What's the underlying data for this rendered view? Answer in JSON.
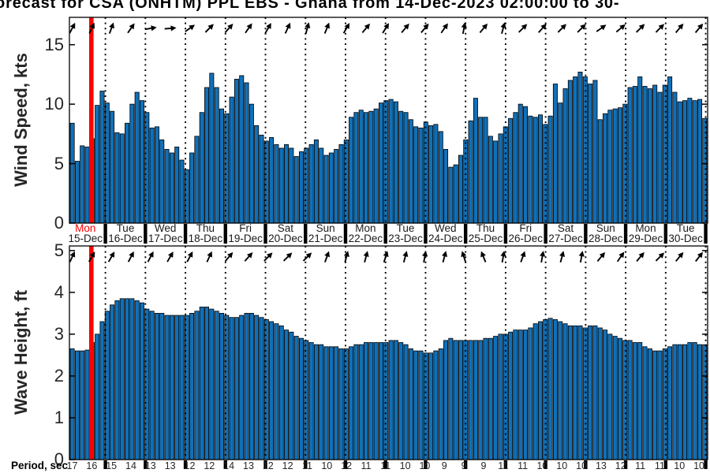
{
  "title": "orecast for CSA (ONHTM) PPL EBS  - Ghana from 14-Dec-2023 02:00:00 to 30-",
  "colors": {
    "bar_fill": "#1070B8",
    "bar_edge": "#000000",
    "now_line": "#FF0000",
    "axis_text": "#262626",
    "highlight_day": "#FF0000"
  },
  "now_marker": {
    "label": "Mon",
    "color": "#FF0000"
  },
  "x_axis": {
    "day_labels": [
      {
        "day": "Mon",
        "date": "15-Dec",
        "highlight": true
      },
      {
        "day": "Tue",
        "date": "16-Dec",
        "highlight": false
      },
      {
        "day": "Wed",
        "date": "17-Dec",
        "highlight": false
      },
      {
        "day": "Thu",
        "date": "18-Dec",
        "highlight": false
      },
      {
        "day": "Fri",
        "date": "19-Dec",
        "highlight": false
      },
      {
        "day": "Sat",
        "date": "20-Dec",
        "highlight": false
      },
      {
        "day": "Sun",
        "date": "21-Dec",
        "highlight": false
      },
      {
        "day": "Mon",
        "date": "22-Dec",
        "highlight": false
      },
      {
        "day": "Tue",
        "date": "23-Dec",
        "highlight": false
      },
      {
        "day": "Wed",
        "date": "24-Dec",
        "highlight": false
      },
      {
        "day": "Thu",
        "date": "25-Dec",
        "highlight": false
      },
      {
        "day": "Fri",
        "date": "26-Dec",
        "highlight": false
      },
      {
        "day": "Sat",
        "date": "27-Dec",
        "highlight": false
      },
      {
        "day": "Sun",
        "date": "28-Dec",
        "highlight": false
      },
      {
        "day": "Mon",
        "date": "29-Dec",
        "highlight": false
      },
      {
        "day": "Tue",
        "date": "30-Dec",
        "highlight": false
      }
    ]
  },
  "period_row": {
    "label": "Period, sec",
    "values": [
      17,
      16,
      15,
      14,
      13,
      13,
      12,
      12,
      14,
      13,
      12,
      12,
      11,
      10,
      12,
      11,
      11,
      10,
      10,
      9,
      9,
      9,
      11,
      11,
      10,
      10,
      10,
      13,
      12,
      11,
      11,
      10,
      10
    ]
  },
  "chart_data": [
    {
      "type": "bar",
      "name": "wind_speed",
      "ylabel": "Wind Speed, kts",
      "units": "kts",
      "interval_hours": 3,
      "ylim": [
        0,
        17.3
      ],
      "yticks": [
        "0",
        "5",
        "10",
        "15"
      ],
      "ytick_values": [
        0,
        5,
        10,
        15
      ],
      "grid": "dotted vertical at day boundaries",
      "values": [
        8.4,
        5.2,
        6.5,
        6.4,
        7.1,
        9.9,
        11.1,
        10.1,
        9.4,
        7.6,
        7.5,
        8.4,
        10.0,
        11.0,
        10.3,
        9.3,
        8.0,
        8.1,
        7.0,
        6.2,
        5.9,
        6.4,
        5.3,
        4.5,
        5.9,
        7.3,
        9.3,
        11.4,
        12.6,
        11.4,
        9.6,
        9.2,
        10.6,
        12.1,
        12.4,
        11.8,
        10.0,
        8.2,
        7.4,
        6.9,
        7.2,
        6.6,
        6.3,
        6.6,
        6.3,
        5.6,
        6.0,
        6.3,
        6.6,
        7.0,
        6.3,
        5.7,
        5.9,
        6.2,
        6.6,
        7.0,
        8.9,
        9.3,
        9.5,
        9.3,
        9.4,
        9.6,
        10.1,
        10.3,
        10.4,
        10.2,
        9.4,
        9.3,
        8.7,
        8.1,
        8.0,
        8.5,
        8.2,
        8.3,
        7.7,
        6.2,
        4.7,
        4.9,
        5.7,
        7.0,
        8.6,
        10.5,
        8.9,
        8.9,
        7.3,
        6.9,
        7.5,
        8.1,
        8.8,
        9.3,
        10.0,
        9.8,
        9.0,
        8.9,
        9.1,
        8.3,
        9.0,
        11.7,
        10.1,
        11.3,
        12.0,
        12.3,
        12.7,
        12.3,
        11.7,
        12.0,
        8.7,
        9.2,
        9.5,
        9.6,
        9.7,
        10.0,
        11.4,
        11.5,
        12.3,
        11.5,
        11.3,
        11.6,
        11.0,
        11.6,
        12.3,
        11.0,
        10.2,
        10.3,
        10.5,
        10.3,
        10.4,
        8.8
      ],
      "arrow_directions_deg": [
        28,
        25,
        20,
        35,
        80,
        85,
        55,
        45,
        42,
        35,
        30,
        25,
        15,
        22,
        30,
        40,
        32,
        40,
        40,
        35,
        10,
        40,
        15,
        45,
        42,
        45,
        45,
        55,
        50,
        45,
        45,
        40,
        40
      ]
    },
    {
      "type": "bar",
      "name": "wave_height",
      "ylabel": "Wave Height, ft",
      "units": "ft",
      "interval_hours": 3,
      "ylim": [
        0,
        5.11
      ],
      "yticks": [
        "0",
        "1",
        "2",
        "3",
        "4",
        "5"
      ],
      "ytick_values": [
        0,
        1,
        2,
        3,
        4,
        5
      ],
      "grid": "dotted vertical at day boundaries",
      "values": [
        2.65,
        2.6,
        2.6,
        2.62,
        2.8,
        3.0,
        3.3,
        3.55,
        3.7,
        3.8,
        3.85,
        3.85,
        3.85,
        3.8,
        3.75,
        3.6,
        3.55,
        3.5,
        3.5,
        3.45,
        3.45,
        3.45,
        3.45,
        3.45,
        3.5,
        3.55,
        3.65,
        3.65,
        3.6,
        3.55,
        3.5,
        3.45,
        3.4,
        3.4,
        3.45,
        3.5,
        3.5,
        3.45,
        3.4,
        3.35,
        3.3,
        3.25,
        3.2,
        3.1,
        3.05,
        2.95,
        2.9,
        2.85,
        2.8,
        2.75,
        2.75,
        2.7,
        2.7,
        2.7,
        2.65,
        2.65,
        2.7,
        2.75,
        2.75,
        2.8,
        2.8,
        2.8,
        2.8,
        2.8,
        2.85,
        2.85,
        2.8,
        2.75,
        2.65,
        2.6,
        2.6,
        2.55,
        2.55,
        2.6,
        2.65,
        2.85,
        2.9,
        2.85,
        2.85,
        2.85,
        2.85,
        2.85,
        2.85,
        2.9,
        2.9,
        2.95,
        3.0,
        3.0,
        3.05,
        3.1,
        3.1,
        3.1,
        3.15,
        3.25,
        3.3,
        3.35,
        3.38,
        3.35,
        3.3,
        3.25,
        3.2,
        3.2,
        3.2,
        3.15,
        3.2,
        3.2,
        3.15,
        3.1,
        3.0,
        2.95,
        2.9,
        2.85,
        2.85,
        2.8,
        2.8,
        2.7,
        2.65,
        2.6,
        2.6,
        2.65,
        2.7,
        2.75,
        2.75,
        2.75,
        2.8,
        2.8,
        2.75,
        2.75
      ],
      "arrow_directions_deg": [
        25,
        30,
        30,
        28,
        28,
        30,
        28,
        25,
        40,
        42,
        45,
        45,
        45,
        20,
        15,
        15,
        18,
        15,
        10,
        15,
        -18,
        -22,
        10,
        20,
        10,
        15,
        10,
        40,
        35,
        40,
        45,
        40,
        38
      ]
    }
  ]
}
